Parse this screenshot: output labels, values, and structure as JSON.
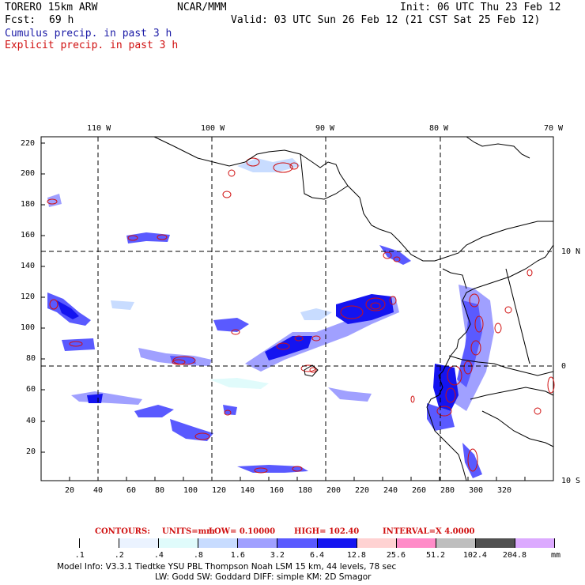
{
  "header": {
    "model_name": "TORERO  15km ARW",
    "center": "NCAR/MMM",
    "init": "Init: 06 UTC Thu 23 Feb 12",
    "fcst_label": "Fcst:",
    "fcst_value": "69 h",
    "valid": "Valid: 03 UTC Sun 26 Feb 12 (21 CST Sat 25 Feb 12)",
    "field1": "Cumulus precip. in past 3 h",
    "field2": "Explicit precip. in past 3 h",
    "field1_color": "#1a1aa6",
    "field2_color": "#d01010"
  },
  "map": {
    "lon_labels": [
      "110 W",
      "100 W",
      "90 W",
      "80 W",
      "70 W"
    ],
    "lat_labels": [
      "10 N",
      "0",
      "10 S"
    ],
    "y_ticks": [
      "220",
      "200",
      "180",
      "160",
      "140",
      "120",
      "100",
      "80",
      "60",
      "40",
      "20"
    ],
    "x_ticks": [
      "20",
      "40",
      "60",
      "80",
      "100",
      "120",
      "140",
      "160",
      "180",
      "200",
      "220",
      "240",
      "260",
      "280",
      "300",
      "320"
    ]
  },
  "contours": {
    "label": "CONTOURS:",
    "units": "UNITS=mm",
    "low": "LOW= 0.10000",
    "high": "HIGH=  102.40",
    "interval": "INTERVAL=X  4.0000"
  },
  "legend": {
    "unit": "mm",
    "labels": [
      ".1",
      ".2",
      ".4",
      ".8",
      "1.6",
      "3.2",
      "6.4",
      "12.8",
      "25.6",
      "51.2",
      "102.4",
      "204.8"
    ],
    "colors": [
      "#ffffff",
      "#ffffff",
      "#ebf3ff",
      "#e0fbfb",
      "#c8dcff",
      "#a0a0ff",
      "#5a5aff",
      "#1414f0",
      "#ffd2d2",
      "#ff8cc8",
      "#bebebe",
      "#505050",
      "#dcaaff"
    ]
  },
  "footer": {
    "line1": "Model Info: V3.3.1    Tiedtke YSU PBL  Thompson    Noah LSM  15 km,   44 levels,   78 sec",
    "line2": "LW: Godd SW: Goddard DIFF: simple KM: 2D Smagor"
  }
}
